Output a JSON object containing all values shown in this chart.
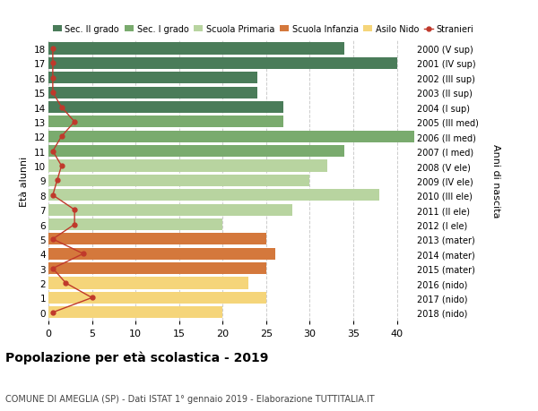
{
  "ages": [
    18,
    17,
    16,
    15,
    14,
    13,
    12,
    11,
    10,
    9,
    8,
    7,
    6,
    5,
    4,
    3,
    2,
    1,
    0
  ],
  "labels_right": [
    "2000 (V sup)",
    "2001 (IV sup)",
    "2002 (III sup)",
    "2003 (II sup)",
    "2004 (I sup)",
    "2005 (III med)",
    "2006 (II med)",
    "2007 (I med)",
    "2008 (V ele)",
    "2009 (IV ele)",
    "2010 (III ele)",
    "2011 (II ele)",
    "2012 (I ele)",
    "2013 (mater)",
    "2014 (mater)",
    "2015 (mater)",
    "2016 (nido)",
    "2017 (nido)",
    "2018 (nido)"
  ],
  "bar_values": [
    34,
    40,
    24,
    24,
    27,
    27,
    42,
    34,
    32,
    30,
    38,
    28,
    20,
    25,
    26,
    25,
    23,
    25,
    20
  ],
  "bar_colors": [
    "#4a7c59",
    "#4a7c59",
    "#4a7c59",
    "#4a7c59",
    "#4a7c59",
    "#7aab6e",
    "#7aab6e",
    "#7aab6e",
    "#b8d4a0",
    "#b8d4a0",
    "#b8d4a0",
    "#b8d4a0",
    "#b8d4a0",
    "#d4783c",
    "#d4783c",
    "#d4783c",
    "#f5d57a",
    "#f5d57a",
    "#f5d57a"
  ],
  "stranieri_values": [
    0.5,
    0.5,
    0.5,
    0.5,
    1.5,
    3,
    1.5,
    0.5,
    1.5,
    1,
    0.5,
    3,
    3,
    0.5,
    4,
    0.5,
    2,
    5,
    0.5
  ],
  "legend_labels": [
    "Sec. II grado",
    "Sec. I grado",
    "Scuola Primaria",
    "Scuola Infanzia",
    "Asilo Nido",
    "Stranieri"
  ],
  "legend_colors": [
    "#4a7c59",
    "#7aab6e",
    "#b8d4a0",
    "#d4783c",
    "#f5d57a",
    "#c0392b"
  ],
  "ylabel": "Età alunni",
  "right_ylabel": "Anni di nascita",
  "title": "Popolazione per età scolastica - 2019",
  "subtitle": "COMUNE DI AMEGLIA (SP) - Dati ISTAT 1° gennaio 2019 - Elaborazione TUTTITALIA.IT",
  "xlim": [
    0,
    42
  ],
  "ylim": [
    -0.55,
    18.55
  ],
  "xticks": [
    0,
    5,
    10,
    15,
    20,
    25,
    30,
    35,
    40
  ],
  "background_color": "#ffffff",
  "grid_color": "#cccccc"
}
